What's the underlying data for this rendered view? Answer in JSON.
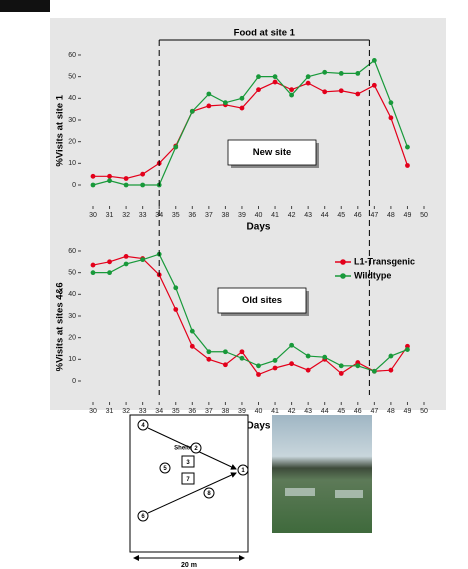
{
  "chart_data": [
    {
      "type": "line",
      "title": "Food at site 1",
      "food_period": [
        34,
        46.7
      ],
      "annotation": "New site",
      "xlabel": "Days",
      "ylabel": "%Visits at site 1",
      "x": [
        30,
        31,
        32,
        33,
        34,
        35,
        36,
        37,
        38,
        39,
        40,
        41,
        42,
        43,
        44,
        45,
        46,
        47,
        48,
        49
      ],
      "xlim": [
        30,
        50
      ],
      "xticks": [
        30,
        31,
        32,
        33,
        34,
        35,
        36,
        37,
        38,
        39,
        40,
        41,
        42,
        43,
        44,
        45,
        46,
        47,
        48,
        49,
        50
      ],
      "ylim": [
        -10,
        60
      ],
      "yticks": [
        0,
        10,
        20,
        30,
        40,
        50,
        60
      ],
      "series": [
        {
          "name": "L1-Transgenic",
          "color": "#e3001b",
          "values": [
            4,
            4,
            3,
            5,
            10,
            18,
            34,
            36.5,
            37,
            35.5,
            44,
            47.5,
            44,
            47,
            43,
            43.5,
            42,
            46,
            31,
            9
          ]
        },
        {
          "name": "Wildtype",
          "color": "#18993a",
          "values": [
            0,
            2,
            0,
            0,
            0,
            17.5,
            34,
            42,
            38,
            40,
            50,
            50,
            41.5,
            50,
            52,
            51.5,
            51.5,
            57.5,
            38,
            17.5
          ]
        }
      ]
    },
    {
      "type": "line",
      "annotation": "Old sites",
      "legend": "upper right",
      "xlabel": "Days",
      "ylabel": "%Visits at sites 4&6",
      "x": [
        30,
        31,
        32,
        33,
        34,
        35,
        36,
        37,
        38,
        39,
        40,
        41,
        42,
        43,
        44,
        45,
        46,
        47,
        48,
        49
      ],
      "xlim": [
        30,
        50
      ],
      "xticks": [
        30,
        31,
        32,
        33,
        34,
        35,
        36,
        37,
        38,
        39,
        40,
        41,
        42,
        43,
        44,
        45,
        46,
        47,
        48,
        49,
        50
      ],
      "ylim": [
        -10,
        60
      ],
      "yticks": [
        0,
        10,
        20,
        30,
        40,
        50,
        60
      ],
      "series": [
        {
          "name": "L1-Transgenic",
          "color": "#e3001b",
          "values": [
            53.5,
            55,
            57.5,
            56.5,
            49,
            33,
            16,
            10,
            7.5,
            13.5,
            3,
            6,
            8,
            5,
            10,
            3.5,
            8.5,
            4.5,
            5,
            16
          ]
        },
        {
          "name": "Wildtype",
          "color": "#18993a",
          "values": [
            50,
            50,
            54,
            56,
            58.5,
            43,
            23,
            13.5,
            13.5,
            10.5,
            7,
            9.5,
            16.5,
            11.5,
            11,
            7,
            7,
            4.5,
            11.5,
            14.5
          ]
        }
      ]
    }
  ],
  "diagram": {
    "shelters": "Shelters",
    "sites": [
      "1",
      "2",
      "3",
      "4",
      "5",
      "6",
      "7",
      "8"
    ],
    "scale": "20 m"
  }
}
